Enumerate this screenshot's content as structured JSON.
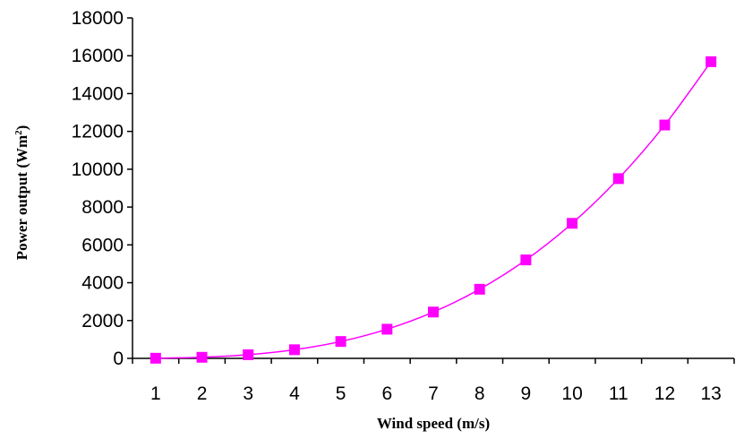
{
  "chart_data": {
    "type": "line",
    "x": [
      1,
      2,
      3,
      4,
      5,
      6,
      7,
      8,
      9,
      10,
      11,
      12,
      13
    ],
    "categories": [
      "1",
      "2",
      "3",
      "4",
      "5",
      "6",
      "7",
      "8",
      "9",
      "10",
      "11",
      "12",
      "13"
    ],
    "series": [
      {
        "values": [
          7,
          57,
          193,
          457,
          892,
          1542,
          2449,
          3655,
          5205,
          7140,
          9503,
          12338,
          15686
        ],
        "color": "#ff00ff",
        "marker": "square"
      }
    ],
    "xlabel": "Wind speed (m/s)",
    "ylabel_text": "Power output (Wm",
    "ylabel_sup": "2",
    "ylabel_close": ")",
    "ylim": [
      0,
      18000
    ],
    "yticks": [
      "0",
      "2000",
      "4000",
      "6000",
      "8000",
      "10000",
      "12000",
      "14000",
      "16000",
      "18000"
    ],
    "grid": false,
    "legend": "none"
  }
}
